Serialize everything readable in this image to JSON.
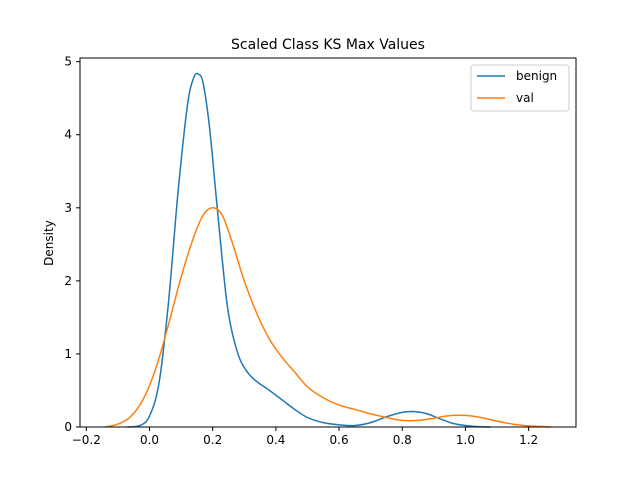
{
  "chart_data": {
    "type": "line",
    "title": "Scaled Class KS Max Values",
    "xlabel": "",
    "ylabel": "Density",
    "xlim": [
      -0.22,
      1.35
    ],
    "ylim": [
      0,
      5.05
    ],
    "xticks": [
      -0.2,
      0.0,
      0.2,
      0.4,
      0.6,
      0.8,
      1.0,
      1.2
    ],
    "xtick_labels": [
      "−0.2",
      "0.0",
      "0.2",
      "0.4",
      "0.6",
      "0.8",
      "1.0",
      "1.2"
    ],
    "yticks": [
      0,
      1,
      2,
      3,
      4,
      5
    ],
    "ytick_labels": [
      "0",
      "1",
      "2",
      "3",
      "4",
      "5"
    ],
    "grid": false,
    "legend_position": "top-right",
    "series": [
      {
        "name": "benign",
        "color": "#1f77b4",
        "x": [
          -0.07,
          -0.03,
          0.0,
          0.03,
          0.06,
          0.09,
          0.12,
          0.14,
          0.155,
          0.17,
          0.19,
          0.21,
          0.23,
          0.25,
          0.28,
          0.31,
          0.34,
          0.38,
          0.42,
          0.46,
          0.5,
          0.55,
          0.6,
          0.65,
          0.7,
          0.75,
          0.8,
          0.84,
          0.88,
          0.92,
          0.96,
          1.0,
          1.04,
          1.08
        ],
        "y": [
          0.0,
          0.02,
          0.15,
          0.6,
          1.7,
          3.2,
          4.4,
          4.78,
          4.83,
          4.7,
          4.1,
          3.2,
          2.3,
          1.55,
          1.0,
          0.75,
          0.62,
          0.5,
          0.37,
          0.24,
          0.13,
          0.06,
          0.03,
          0.02,
          0.06,
          0.14,
          0.2,
          0.21,
          0.18,
          0.11,
          0.05,
          0.02,
          0.005,
          0.0
        ]
      },
      {
        "name": "val",
        "color": "#ff7f0e",
        "x": [
          -0.14,
          -0.1,
          -0.06,
          -0.02,
          0.02,
          0.06,
          0.1,
          0.14,
          0.17,
          0.2,
          0.23,
          0.26,
          0.3,
          0.34,
          0.38,
          0.42,
          0.46,
          0.5,
          0.55,
          0.6,
          0.65,
          0.7,
          0.75,
          0.8,
          0.85,
          0.9,
          0.94,
          0.98,
          1.02,
          1.06,
          1.1,
          1.15,
          1.2,
          1.27
        ],
        "y": [
          0.0,
          0.04,
          0.14,
          0.38,
          0.8,
          1.4,
          2.05,
          2.6,
          2.9,
          3.0,
          2.9,
          2.55,
          2.0,
          1.55,
          1.2,
          0.95,
          0.75,
          0.55,
          0.4,
          0.3,
          0.24,
          0.18,
          0.13,
          0.09,
          0.09,
          0.12,
          0.15,
          0.16,
          0.15,
          0.12,
          0.08,
          0.04,
          0.015,
          0.0
        ]
      }
    ]
  }
}
